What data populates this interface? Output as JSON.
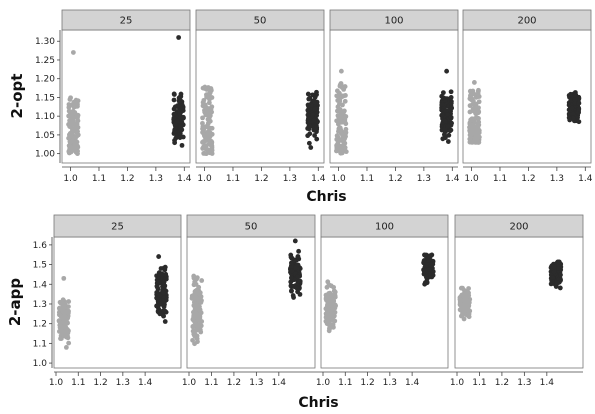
{
  "chart_data": [
    {
      "type": "scatter",
      "ylabel": "2-opt",
      "xlabel": "Chris",
      "xlim": [
        0.97,
        1.42
      ],
      "ylim": [
        0.975,
        1.33
      ],
      "xticks": [
        "1.0",
        "1.1",
        "1.2",
        "1.3",
        "1.4"
      ],
      "yticks": [
        "1.00",
        "1.05",
        "1.10",
        "1.15",
        "1.20",
        "1.25",
        "1.30"
      ],
      "panels": [
        {
          "label": "25",
          "groups": [
            {
              "x": 1.01,
              "ymin": 1.0,
              "ymax": 1.15,
              "color": "#a8a8a8",
              "outliers": [
                1.27
              ]
            },
            {
              "x": 1.38,
              "ymin": 1.0,
              "ymax": 1.18,
              "color": "#2b2b2b",
              "outliers": [
                1.31
              ]
            }
          ]
        },
        {
          "label": "50",
          "groups": [
            {
              "x": 1.01,
              "ymin": 1.0,
              "ymax": 1.18,
              "color": "#a8a8a8",
              "outliers": []
            },
            {
              "x": 1.38,
              "ymin": 1.0,
              "ymax": 1.2,
              "color": "#2b2b2b",
              "outliers": []
            }
          ]
        },
        {
          "label": "100",
          "groups": [
            {
              "x": 1.01,
              "ymin": 1.0,
              "ymax": 1.19,
              "color": "#a8a8a8",
              "outliers": [
                1.22
              ]
            },
            {
              "x": 1.38,
              "ymin": 1.02,
              "ymax": 1.19,
              "color": "#2b2b2b",
              "outliers": [
                1.22
              ]
            }
          ]
        },
        {
          "label": "200",
          "groups": [
            {
              "x": 1.01,
              "ymin": 1.03,
              "ymax": 1.17,
              "color": "#a8a8a8",
              "outliers": [
                1.19
              ]
            },
            {
              "x": 1.36,
              "ymin": 1.07,
              "ymax": 1.18,
              "color": "#2b2b2b",
              "outliers": []
            }
          ]
        }
      ]
    },
    {
      "type": "scatter",
      "ylabel": "2-app",
      "xlabel": "Chris",
      "xlim": [
        0.97,
        1.49
      ],
      "ylim": [
        0.975,
        1.64
      ],
      "xticks": [
        "1.0",
        "1.1",
        "1.2",
        "1.3",
        "1.4"
      ],
      "yticks": [
        "1.0",
        "1.1",
        "1.2",
        "1.3",
        "1.4",
        "1.5",
        "1.6"
      ],
      "panels": [
        {
          "label": "25",
          "groups": [
            {
              "x": 1.01,
              "ymin": 1.04,
              "ymax": 1.4,
              "color": "#a8a8a8",
              "outliers": [
                1.43
              ]
            },
            {
              "x": 1.41,
              "ymin": 1.17,
              "ymax": 1.56,
              "color": "#2b2b2b",
              "outliers": []
            }
          ]
        },
        {
          "label": "50",
          "groups": [
            {
              "x": 1.01,
              "ymin": 1.04,
              "ymax": 1.49,
              "color": "#a8a8a8",
              "outliers": []
            },
            {
              "x": 1.41,
              "ymin": 1.3,
              "ymax": 1.6,
              "color": "#2b2b2b",
              "outliers": [
                1.62
              ]
            }
          ]
        },
        {
          "label": "100",
          "groups": [
            {
              "x": 1.01,
              "ymin": 1.1,
              "ymax": 1.46,
              "color": "#a8a8a8",
              "outliers": []
            },
            {
              "x": 1.41,
              "ymin": 1.38,
              "ymax": 1.59,
              "color": "#2b2b2b",
              "outliers": []
            }
          ]
        },
        {
          "label": "200",
          "groups": [
            {
              "x": 1.01,
              "ymin": 1.2,
              "ymax": 1.42,
              "color": "#a8a8a8",
              "outliers": []
            },
            {
              "x": 1.38,
              "ymin": 1.36,
              "ymax": 1.55,
              "color": "#2b2b2b",
              "outliers": []
            }
          ]
        }
      ]
    }
  ]
}
